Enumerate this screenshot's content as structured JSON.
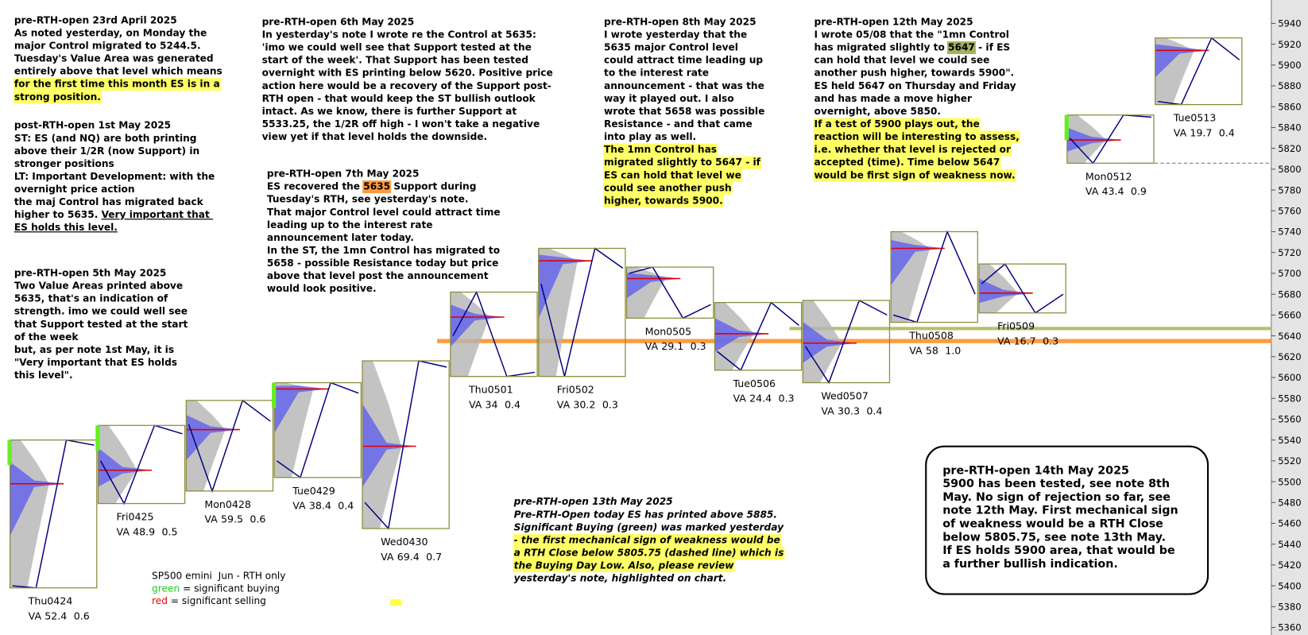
{
  "chart_data": {
    "type": "profile",
    "ylim": [
      5360,
      5940
    ],
    "yticks": [
      5360,
      5380,
      5400,
      5420,
      5440,
      5460,
      5480,
      5500,
      5520,
      5540,
      5560,
      5580,
      5600,
      5620,
      5640,
      5660,
      5680,
      5700,
      5720,
      5740,
      5760,
      5780,
      5800,
      5820,
      5840,
      5860,
      5880,
      5900,
      5920,
      5940
    ],
    "va_prefix": "VA",
    "colors": {
      "box": "#8c8c3c",
      "price": "#000080",
      "profile": "#5a5af0",
      "volume": "#b4b4b4",
      "poc": "#e00000",
      "buying": "#66ee22"
    },
    "days": [
      {
        "name": "Thu0424",
        "open": 5400,
        "high": 5540,
        "low": 5398,
        "close": 5535,
        "poc": 5498,
        "va": 52.4,
        "ratio": 0.6,
        "buying": true
      },
      {
        "name": "Fri0425",
        "open": 5520,
        "high": 5554,
        "low": 5479,
        "close": 5546,
        "poc": 5511,
        "va": 48.9,
        "ratio": 0.5,
        "buying": true
      },
      {
        "name": "Mon0428",
        "open": 5555,
        "high": 5578,
        "low": 5491,
        "close": 5558,
        "poc": 5550,
        "va": 59.5,
        "ratio": 0.6,
        "buying": false
      },
      {
        "name": "Tue0429",
        "open": 5520,
        "high": 5595,
        "low": 5504,
        "close": 5585,
        "poc": 5589,
        "va": 38.4,
        "ratio": 0.4,
        "buying": true
      },
      {
        "name": "Wed0430",
        "open": 5480,
        "high": 5616,
        "low": 5455,
        "close": 5610,
        "poc": 5534,
        "va": 69.4,
        "ratio": 0.7,
        "buying": false
      },
      {
        "name": "Thu0501",
        "open": 5640,
        "high": 5682,
        "low": 5601,
        "close": 5605,
        "poc": 5658,
        "va": 34.0,
        "ratio": 0.4,
        "buying": false
      },
      {
        "name": "Fri0502",
        "open": 5690,
        "high": 5724,
        "low": 5601,
        "close": 5705,
        "poc": 5712,
        "va": 30.2,
        "ratio": 0.3,
        "buying": false
      },
      {
        "name": "Mon0505",
        "open": 5700,
        "high": 5706,
        "low": 5657,
        "close": 5670,
        "poc": 5695,
        "va": 29.1,
        "ratio": 0.3,
        "buying": false
      },
      {
        "name": "Tue0506",
        "open": 5625,
        "high": 5672,
        "low": 5607,
        "close": 5650,
        "poc": 5642,
        "va": 24.4,
        "ratio": 0.3,
        "buying": false
      },
      {
        "name": "Wed0507",
        "open": 5630,
        "high": 5674,
        "low": 5595,
        "close": 5660,
        "poc": 5633,
        "va": 30.3,
        "ratio": 0.4,
        "buying": false
      },
      {
        "name": "Thu0508",
        "open": 5660,
        "high": 5740,
        "low": 5653,
        "close": 5680,
        "poc": 5724,
        "va": 58.0,
        "ratio": 1,
        "ratio_label": "1.0",
        "buying": false
      },
      {
        "name": "Fri0509",
        "open": 5690,
        "high": 5709,
        "low": 5662,
        "close": 5680,
        "poc": 5681,
        "va": 16.7,
        "ratio": 0.3,
        "buying": false
      },
      {
        "name": "Mon0512",
        "open": 5830,
        "high": 5852,
        "low": 5805.75,
        "close": 5850,
        "poc": 5828,
        "va": 43.4,
        "ratio": 0.9,
        "buying": true
      },
      {
        "name": "Tue0513",
        "open": 5865,
        "high": 5926,
        "low": 5862,
        "close": 5905,
        "poc": 5914,
        "va": 19.7,
        "ratio": 0.4,
        "buying": false
      }
    ],
    "levels": [
      {
        "value": 5635,
        "color": "#ff9a3c",
        "style": "solid",
        "from_day": 5
      },
      {
        "value": 5647,
        "color": "#b8c070",
        "style": "solid",
        "from_day": 9
      },
      {
        "value": 5805.75,
        "color": "#888888",
        "style": "dashed",
        "from_day": 12
      }
    ],
    "annotations": [
      {
        "style": "note",
        "lines": [
          "pre-RTH-open 23rd April 2025",
          "As noted yesterday, on Monday the",
          "major Control migrated to 5244.5.",
          "Tuesday's Value Area was generated",
          "entirely above that level which means",
          {
            "text": "for the first time this month ES is in a",
            "bg": "#ffff66"
          },
          {
            "text": "strong position.",
            "bg": "#ffff66"
          }
        ]
      },
      {
        "style": "note",
        "lines": [
          "post-RTH-open 1st May 2025",
          "ST: ES (and NQ) are both printing",
          "above their 1/2R (now Support) in",
          "stronger positions",
          "LT: Important Development: with the",
          "overnight price action",
          "the maj Control has migrated back",
          {
            "parts": [
              {
                "text": "higher to 5635. "
              },
              {
                "text": "Very important that ",
                "underline": true
              }
            ]
          },
          {
            "text": "ES holds this level.",
            "underline": true
          }
        ]
      },
      {
        "style": "note",
        "lines": [
          "pre-RTH-open 5th May 2025",
          "Two Value Areas printed above",
          "5635, that's an indication of",
          "strength. imo we could well see",
          "that Support tested at the start",
          "of the week",
          "but, as per note 1st May, it is",
          "\"Very important that ES holds",
          "this level\"."
        ]
      },
      {
        "style": "note",
        "lines": [
          "pre-RTH-open 6th May 2025",
          "In yesterday's note I wrote re the Control at 5635:",
          "'imo we could well see that Support tested at the",
          "start of the week'. That Support has been tested",
          "overnight with ES printing below 5620. Positive price",
          "action here would be a recovery of the Support post-",
          "RTH open - that would keep the ST bullish outlook",
          "intact. As we know, there is further Support at",
          "5533.25, the 1/2R off high - I won't take a negative",
          "view yet if that level holds the downside."
        ]
      },
      {
        "style": "note",
        "lines": [
          "pre-RTH-open 7th May 2025",
          {
            "parts": [
              {
                "text": "ES recovered the "
              },
              {
                "text": "5635",
                "bg": "#ff9a3c"
              },
              {
                "text": " Support during"
              }
            ]
          },
          "Tuesday's RTH, see yesterday's note.",
          "That major Control level could attract time",
          "leading up to the interest rate",
          "announcement later today.",
          "In the ST, the 1mn Control has migrated to",
          "5658 - possible Resistance today but price",
          "above that level post the announcement",
          "would look positive."
        ]
      },
      {
        "style": "note",
        "lines": [
          "pre-RTH-open 8th May 2025",
          "I wrote yesterday that the",
          "5635 major Control level",
          "could attract time leading up",
          "to the interest rate",
          "announcement - that was the",
          "way it played out. I also",
          "wrote that 5658 was possible",
          "Resistance - and that came",
          "into play as well.",
          {
            "text": "The 1mn Control has",
            "bg": "#ffff66"
          },
          {
            "text": "migrated slightly to 5647 - if",
            "bg": "#ffff66"
          },
          {
            "text": "ES can hold that level we",
            "bg": "#ffff66"
          },
          {
            "text": "could see another push",
            "bg": "#ffff66"
          },
          {
            "text": "higher, towards 5900.",
            "bg": "#ffff66"
          }
        ]
      },
      {
        "style": "note",
        "lines": [
          "pre-RTH-open 12th May 2025",
          "I wrote 05/08 that the \"1mn Control",
          {
            "parts": [
              {
                "text": "has migrated slightly to "
              },
              {
                "text": "5647",
                "bg": "#a8b060"
              },
              {
                "text": " - if ES"
              }
            ]
          },
          "can hold that level we could see",
          "another push higher, towards 5900\".",
          "ES held 5647 on Thursday and Friday",
          "and has made a move higher",
          "overnight, above 5850.",
          {
            "text": "If a test of 5900 plays out, the",
            "bg": "#ffff66"
          },
          {
            "text": "reaction will be interesting to assess,",
            "bg": "#ffff66"
          },
          {
            "text": "i.e. whether that level is rejected or",
            "bg": "#ffff66"
          },
          {
            "text": "accepted (time). Time below 5647",
            "bg": "#ffff66"
          },
          {
            "text": "would be first sign of weakness now.",
            "bg": "#ffff66"
          }
        ]
      },
      {
        "style": "italic",
        "lines": [
          "pre-RTH-open 13th May 2025",
          "Pre-RTH-Open today ES has printed above 5885.",
          "Significant Buying (green) was marked yesterday",
          {
            "text": "- the first mechanical sign of weakness would be",
            "bg": "#ffff66"
          },
          {
            "text": "a RTH Close below 5805.75 (dashed line) which is",
            "bg": "#ffff66"
          },
          {
            "text": "the Buying Day Low. Also, please review",
            "bg": "#ffff66"
          },
          "yesterday's note, highlighted on chart."
        ]
      },
      {
        "style": "plain",
        "lines": [
          "SP500 emini  Jun - RTH only",
          {
            "parts": [
              {
                "text": "green",
                "color": "#22cc22"
              },
              {
                "text": " = significant buying"
              }
            ]
          },
          {
            "parts": [
              {
                "text": "red",
                "color": "#ee0000"
              },
              {
                "text": " = significant selling"
              }
            ]
          }
        ]
      },
      {
        "style": "box",
        "lines": [
          "pre-RTH-open 14th May 2025",
          "5900 has been tested, see note 8th",
          "May. No sign of rejection so far, see",
          "note 12th May. First mechanical sign",
          "of weakness would be a RTH Close",
          "below 5805.75, see note 13th May.",
          "If ES holds 5900 area, that would be",
          "a further bullish indication."
        ]
      }
    ]
  }
}
